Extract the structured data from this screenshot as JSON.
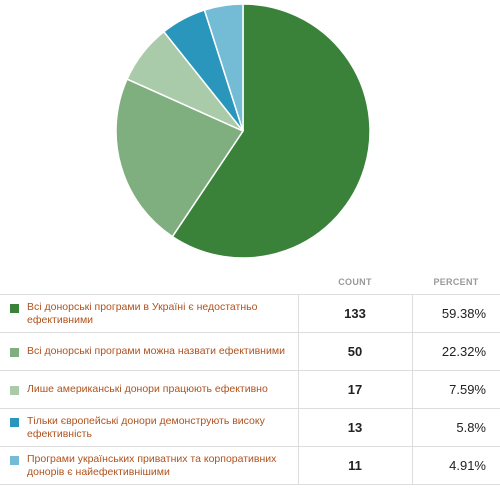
{
  "chart_data": {
    "type": "pie",
    "series": [
      {
        "label": "Всі донорські програми в Україні є недостатньо ефективними",
        "count": 133,
        "percent_label": "59.38%",
        "value": 59.38,
        "color": "#3a823a"
      },
      {
        "label": "Всі донорські програми можна назвати ефективними",
        "count": 50,
        "percent_label": "22.32%",
        "value": 22.32,
        "color": "#7faf7f"
      },
      {
        "label": "Лише американські донори працюють ефективно",
        "count": 17,
        "percent_label": "7.59%",
        "value": 7.59,
        "color": "#a9cba9"
      },
      {
        "label": "Тільки європейські донори демонструють високу ефективність",
        "count": 13,
        "percent_label": "5.8%",
        "value": 5.8,
        "color": "#2b96bc"
      },
      {
        "label": "Програми українських приватних та корпоративних донорів є найефективнішими",
        "count": 11,
        "percent_label": "4.91%",
        "value": 4.91,
        "color": "#74bcd6"
      }
    ]
  },
  "table": {
    "headers": {
      "answer": "",
      "count": "COUNT",
      "percent": "PERCENT"
    }
  },
  "colors": {
    "answer_text": "#b0521e",
    "header_text": "#999999",
    "divider": "#dddddd"
  }
}
